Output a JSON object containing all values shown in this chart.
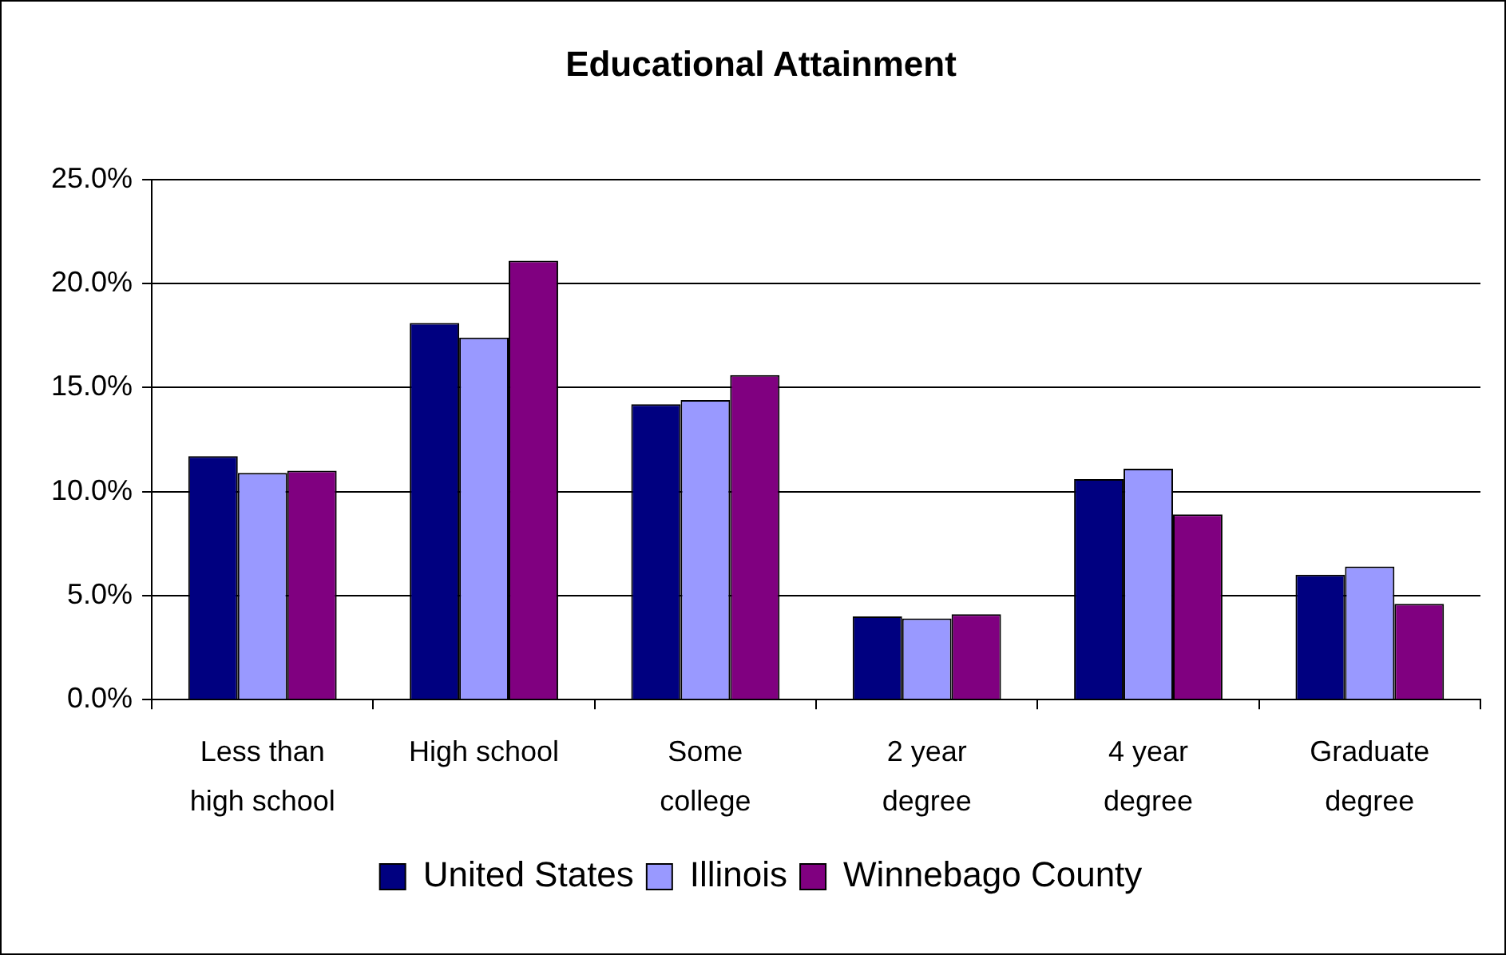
{
  "chart_data": {
    "type": "bar",
    "title": "Educational Attainment",
    "categories": [
      "Less than high school",
      "High school",
      "Some college",
      "2 year degree",
      "4 year degree",
      "Graduate degree"
    ],
    "series": [
      {
        "name": "United States",
        "color": "#000080",
        "values": [
          11.7,
          18.1,
          14.2,
          4.0,
          10.6,
          6.0
        ]
      },
      {
        "name": "Illinois",
        "color": "#9999ff",
        "values": [
          10.9,
          17.4,
          14.4,
          3.9,
          11.1,
          6.4
        ]
      },
      {
        "name": "Winnebago County",
        "color": "#800080",
        "values": [
          11.0,
          21.1,
          15.6,
          4.1,
          8.9,
          4.6
        ]
      }
    ],
    "ylim": [
      0,
      25
    ],
    "yticks": [
      {
        "value": 0,
        "label": "0.0%"
      },
      {
        "value": 5,
        "label": "5.0%"
      },
      {
        "value": 10,
        "label": "10.0%"
      },
      {
        "value": 15,
        "label": "15.0%"
      },
      {
        "value": 20,
        "label": "20.0%"
      },
      {
        "value": 25,
        "label": "25.0%"
      }
    ],
    "grid": "y",
    "legend": "bottom"
  }
}
